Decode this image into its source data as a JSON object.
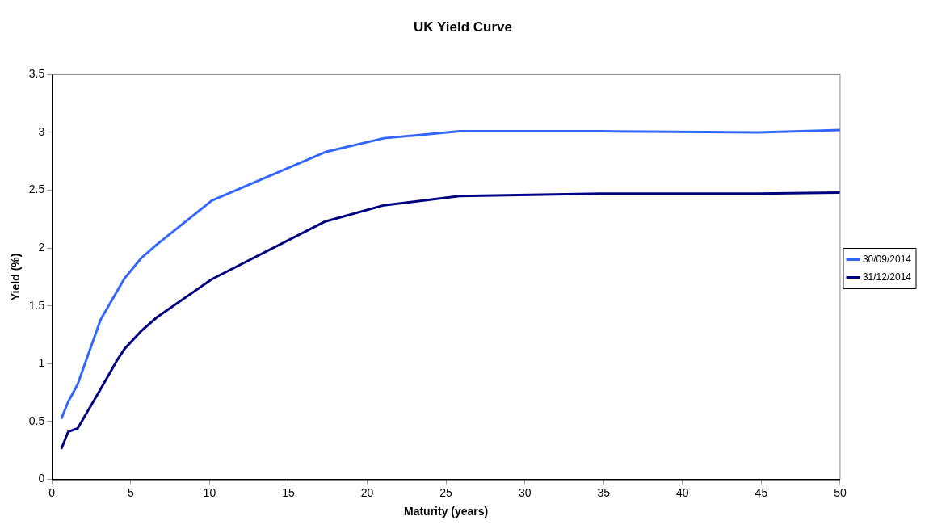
{
  "chart_data": {
    "type": "line",
    "title": "UK Yield Curve",
    "xlabel": "Maturity (years)",
    "ylabel": "Yield (%)",
    "xlim": [
      0,
      50
    ],
    "xticks": [
      0,
      5,
      10,
      15,
      20,
      25,
      30,
      35,
      40,
      45,
      50
    ],
    "ylim": [
      0,
      3.5
    ],
    "yticks": [
      0,
      0.5,
      1,
      1.5,
      2,
      2.5,
      3,
      3.5
    ],
    "grid": false,
    "legend": "right",
    "marker": "none",
    "line_style": "solid",
    "series": [
      {
        "name": "30/09/2014",
        "color": "#3366ff",
        "x": [
          0.62,
          1.03,
          1.63,
          3.09,
          4.62,
          5.65,
          6.65,
          10.14,
          17.34,
          21.07,
          25.86,
          34.84,
          44.8,
          50
        ],
        "values": [
          0.53,
          0.67,
          0.82,
          1.38,
          1.74,
          1.91,
          2.03,
          2.41,
          2.83,
          2.95,
          3.01,
          3.01,
          3.0,
          3.02
        ]
      },
      {
        "name": "31/12/2014",
        "color": "#000080",
        "x": [
          0.62,
          1.03,
          1.63,
          3.09,
          4.09,
          4.62,
          5.65,
          6.65,
          10.14,
          17.34,
          21.07,
          25.86,
          34.84,
          44.8,
          50
        ],
        "values": [
          0.27,
          0.41,
          0.44,
          0.78,
          1.02,
          1.13,
          1.28,
          1.4,
          1.73,
          2.23,
          2.37,
          2.45,
          2.47,
          2.47,
          2.48
        ]
      }
    ]
  }
}
